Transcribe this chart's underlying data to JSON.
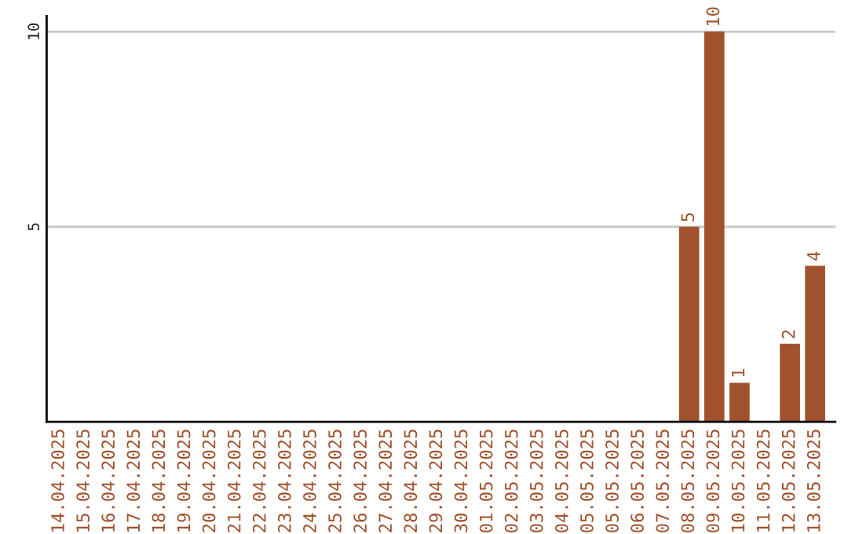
{
  "chart_data": {
    "type": "bar",
    "categories": [
      "14.04.2025",
      "15.04.2025",
      "16.04.2025",
      "17.04.2025",
      "18.04.2025",
      "19.04.2025",
      "20.04.2025",
      "21.04.2025",
      "22.04.2025",
      "23.04.2025",
      "24.04.2025",
      "25.04.2025",
      "26.04.2025",
      "27.04.2025",
      "28.04.2025",
      "29.04.2025",
      "30.04.2025",
      "01.05.2025",
      "02.05.2025",
      "03.05.2025",
      "04.05.2025",
      "05.05.2025",
      "05.05.2025",
      "06.05.2025",
      "07.05.2025",
      "08.05.2025",
      "09.05.2025",
      "10.05.2025",
      "11.05.2025",
      "12.05.2025",
      "13.05.2025"
    ],
    "values": [
      0,
      0,
      0,
      0,
      0,
      0,
      0,
      0,
      0,
      0,
      0,
      0,
      0,
      0,
      0,
      0,
      0,
      0,
      0,
      0,
      0,
      0,
      0,
      0,
      0,
      5,
      10,
      1,
      0,
      2,
      4
    ],
    "value_labels": [
      null,
      null,
      null,
      null,
      null,
      null,
      null,
      null,
      null,
      null,
      null,
      null,
      null,
      null,
      null,
      null,
      null,
      null,
      null,
      null,
      null,
      null,
      null,
      null,
      null,
      "5",
      "10",
      "1",
      null,
      "2",
      "4"
    ],
    "color": "#a0522d",
    "ylim": [
      0,
      10.4
    ],
    "yticks": [
      5,
      10
    ],
    "grid": "y"
  }
}
